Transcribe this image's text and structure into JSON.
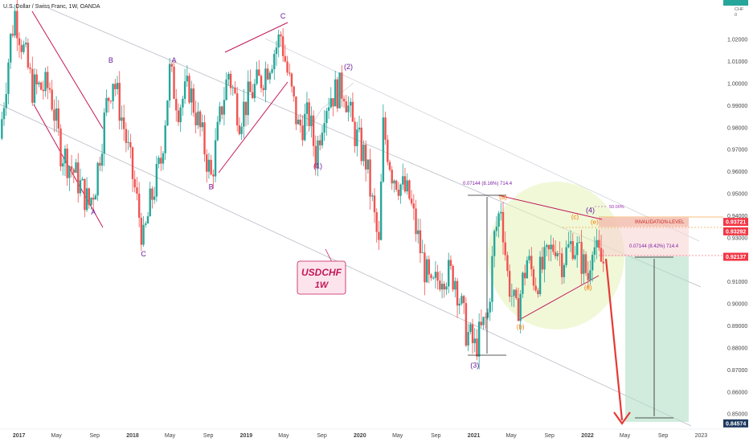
{
  "header": {
    "symbol_title": "U.S. Dollar / Swiss Franc, 1W, OANDA",
    "currency": "CHF",
    "currency_sub": "0"
  },
  "chart_data": {
    "type": "candlestick",
    "symbol": "USDCHF",
    "timeframe": "1W",
    "ylim": [
      0.8457,
      1.035
    ],
    "xlim": [
      "2016-11-01",
      "2023-01-31"
    ],
    "y_ticks": [
      1.02,
      1.01,
      1.0,
      0.99,
      0.98,
      0.97,
      0.96,
      0.95,
      0.94,
      0.93,
      0.91,
      0.9,
      0.89,
      0.88,
      0.87,
      0.86,
      0.85
    ],
    "x_ticks": [
      {
        "label": "2017",
        "date": "2017-01-01",
        "bold": true
      },
      {
        "label": "May",
        "date": "2017-05-01"
      },
      {
        "label": "Sep",
        "date": "2017-09-01"
      },
      {
        "label": "2018",
        "date": "2018-01-01",
        "bold": true
      },
      {
        "label": "May",
        "date": "2018-05-01"
      },
      {
        "label": "Sep",
        "date": "2018-09-01"
      },
      {
        "label": "2019",
        "date": "2019-01-01",
        "bold": true
      },
      {
        "label": "May",
        "date": "2019-05-01"
      },
      {
        "label": "Sep",
        "date": "2019-09-01"
      },
      {
        "label": "2020",
        "date": "2020-01-01",
        "bold": true
      },
      {
        "label": "May",
        "date": "2020-05-01"
      },
      {
        "label": "Sep",
        "date": "2020-09-01"
      },
      {
        "label": "2021",
        "date": "2021-01-01",
        "bold": true
      },
      {
        "label": "May",
        "date": "2021-05-01"
      },
      {
        "label": "Sep",
        "date": "2021-09-01"
      },
      {
        "label": "2022",
        "date": "2022-01-01",
        "bold": true
      },
      {
        "label": "May",
        "date": "2022-05-01"
      },
      {
        "label": "Sep",
        "date": "2022-09-01"
      },
      {
        "label": "2023",
        "date": "2023-01-01"
      }
    ],
    "price_path": [
      [
        "2016-11-07",
        0.975
      ],
      [
        "2016-12-12",
        1.02
      ],
      [
        "2016-12-26",
        1.032
      ],
      [
        "2017-02-20",
        0.998
      ],
      [
        "2017-04-17",
        0.998
      ],
      [
        "2017-05-22",
        0.97
      ],
      [
        "2017-07-03",
        0.96
      ],
      [
        "2017-08-21",
        0.945
      ],
      [
        "2017-09-11",
        0.955
      ],
      [
        "2017-10-16",
        0.99
      ],
      [
        "2017-11-06",
        1.003
      ],
      [
        "2017-12-11",
        0.98
      ],
      [
        "2018-01-15",
        0.952
      ],
      [
        "2018-02-12",
        0.928
      ],
      [
        "2018-03-05",
        0.945
      ],
      [
        "2018-04-09",
        0.965
      ],
      [
        "2018-05-07",
        1.005
      ],
      [
        "2018-06-04",
        0.99
      ],
      [
        "2018-07-09",
        0.998
      ],
      [
        "2018-08-20",
        0.975
      ],
      [
        "2018-09-17",
        0.957
      ],
      [
        "2018-10-22",
        0.99
      ],
      [
        "2018-11-12",
        1.005
      ],
      [
        "2018-12-17",
        0.985
      ],
      [
        "2019-01-21",
        0.995
      ],
      [
        "2019-02-25",
        1.002
      ],
      [
        "2019-04-15",
        1.017
      ],
      [
        "2019-04-29",
        1.022
      ],
      [
        "2019-05-20",
        1.005
      ],
      [
        "2019-06-24",
        0.98
      ],
      [
        "2019-07-29",
        0.985
      ],
      [
        "2019-08-19",
        0.967
      ],
      [
        "2019-09-16",
        0.99
      ],
      [
        "2019-10-07",
        0.995
      ],
      [
        "2019-11-18",
        0.998
      ],
      [
        "2019-12-16",
        0.98
      ],
      [
        "2020-01-27",
        0.965
      ],
      [
        "2020-03-09",
        0.925
      ],
      [
        "2020-03-23",
        0.98
      ],
      [
        "2020-04-20",
        0.96
      ],
      [
        "2020-06-15",
        0.948
      ],
      [
        "2020-07-27",
        0.92
      ],
      [
        "2020-08-24",
        0.905
      ],
      [
        "2020-09-28",
        0.915
      ],
      [
        "2020-11-09",
        0.912
      ],
      [
        "2020-12-14",
        0.888
      ],
      [
        "2021-01-11",
        0.88
      ],
      [
        "2021-02-22",
        0.895
      ],
      [
        "2021-03-15",
        0.93
      ],
      [
        "2021-04-05",
        0.945
      ],
      [
        "2021-04-26",
        0.913
      ],
      [
        "2021-05-24",
        0.895
      ],
      [
        "2021-06-28",
        0.92
      ],
      [
        "2021-07-26",
        0.91
      ],
      [
        "2021-08-30",
        0.92
      ],
      [
        "2021-09-27",
        0.928
      ],
      [
        "2021-10-18",
        0.92
      ],
      [
        "2021-11-22",
        0.928
      ],
      [
        "2021-12-20",
        0.92
      ],
      [
        "2022-01-10",
        0.912
      ],
      [
        "2022-01-24",
        0.93
      ],
      [
        "2022-02-07",
        0.922
      ],
      [
        "2022-02-21",
        0.919
      ]
    ],
    "price_labels": [
      {
        "value": 0.93721,
        "text": "0.93721",
        "color": "#f23645"
      },
      {
        "value": 0.93292,
        "text": "0.93292",
        "color": "#f23645"
      },
      {
        "value": 0.92137,
        "text": "0.92137",
        "color": "#f23645"
      },
      {
        "value": 0.84574,
        "text": "0.84574",
        "color": "#1e3a5f"
      }
    ],
    "colors": {
      "up": "#26a69a",
      "down": "#ef5350",
      "annotation": "#9c27b0",
      "sub_wave": "#f57c00",
      "arrow": "#e53935"
    }
  },
  "annotations": {
    "waves": [
      {
        "label": "A",
        "date": "2017-08-28",
        "value": 0.9405
      },
      {
        "label": "B",
        "date": "2017-10-23",
        "value": 1.0095
      },
      {
        "label": "C",
        "date": "2018-02-05",
        "value": 0.9215
      },
      {
        "label": "A",
        "date": "2018-05-14",
        "value": 1.0095
      },
      {
        "label": "B",
        "date": "2018-09-10",
        "value": 0.952
      },
      {
        "label": "C",
        "date": "2019-04-29",
        "value": 1.0295
      },
      {
        "label": "(1)",
        "date": "2019-08-19",
        "value": 0.9615
      },
      {
        "label": "(2)",
        "date": "2019-11-25",
        "value": 1.0065
      },
      {
        "label": "(3)",
        "date": "2021-01-04",
        "value": 0.871
      },
      {
        "label": "(4)",
        "date": "2022-01-10",
        "value": 0.9415
      }
    ],
    "sub_waves": [
      {
        "label": "(a)",
        "date": "2021-04-05",
        "value": 0.9475
      },
      {
        "label": "(b)",
        "date": "2021-05-31",
        "value": 0.8885
      },
      {
        "label": "(c)",
        "date": "2021-11-22",
        "value": 0.9385
      },
      {
        "label": "(d)",
        "date": "2022-01-03",
        "value": 0.9065
      },
      {
        "label": "(e)",
        "date": "2022-01-24",
        "value": 0.9362
      }
    ],
    "measure_top_text": "0.07144 (8.16%) 714.4",
    "measure_right_text": "0.07144 (8.42%) 714.4",
    "fib_text": "50.00%",
    "invalidation_text": "INVALIDATION-LEVEL",
    "callout_title": "USDCHF",
    "callout_sub": "1W"
  }
}
